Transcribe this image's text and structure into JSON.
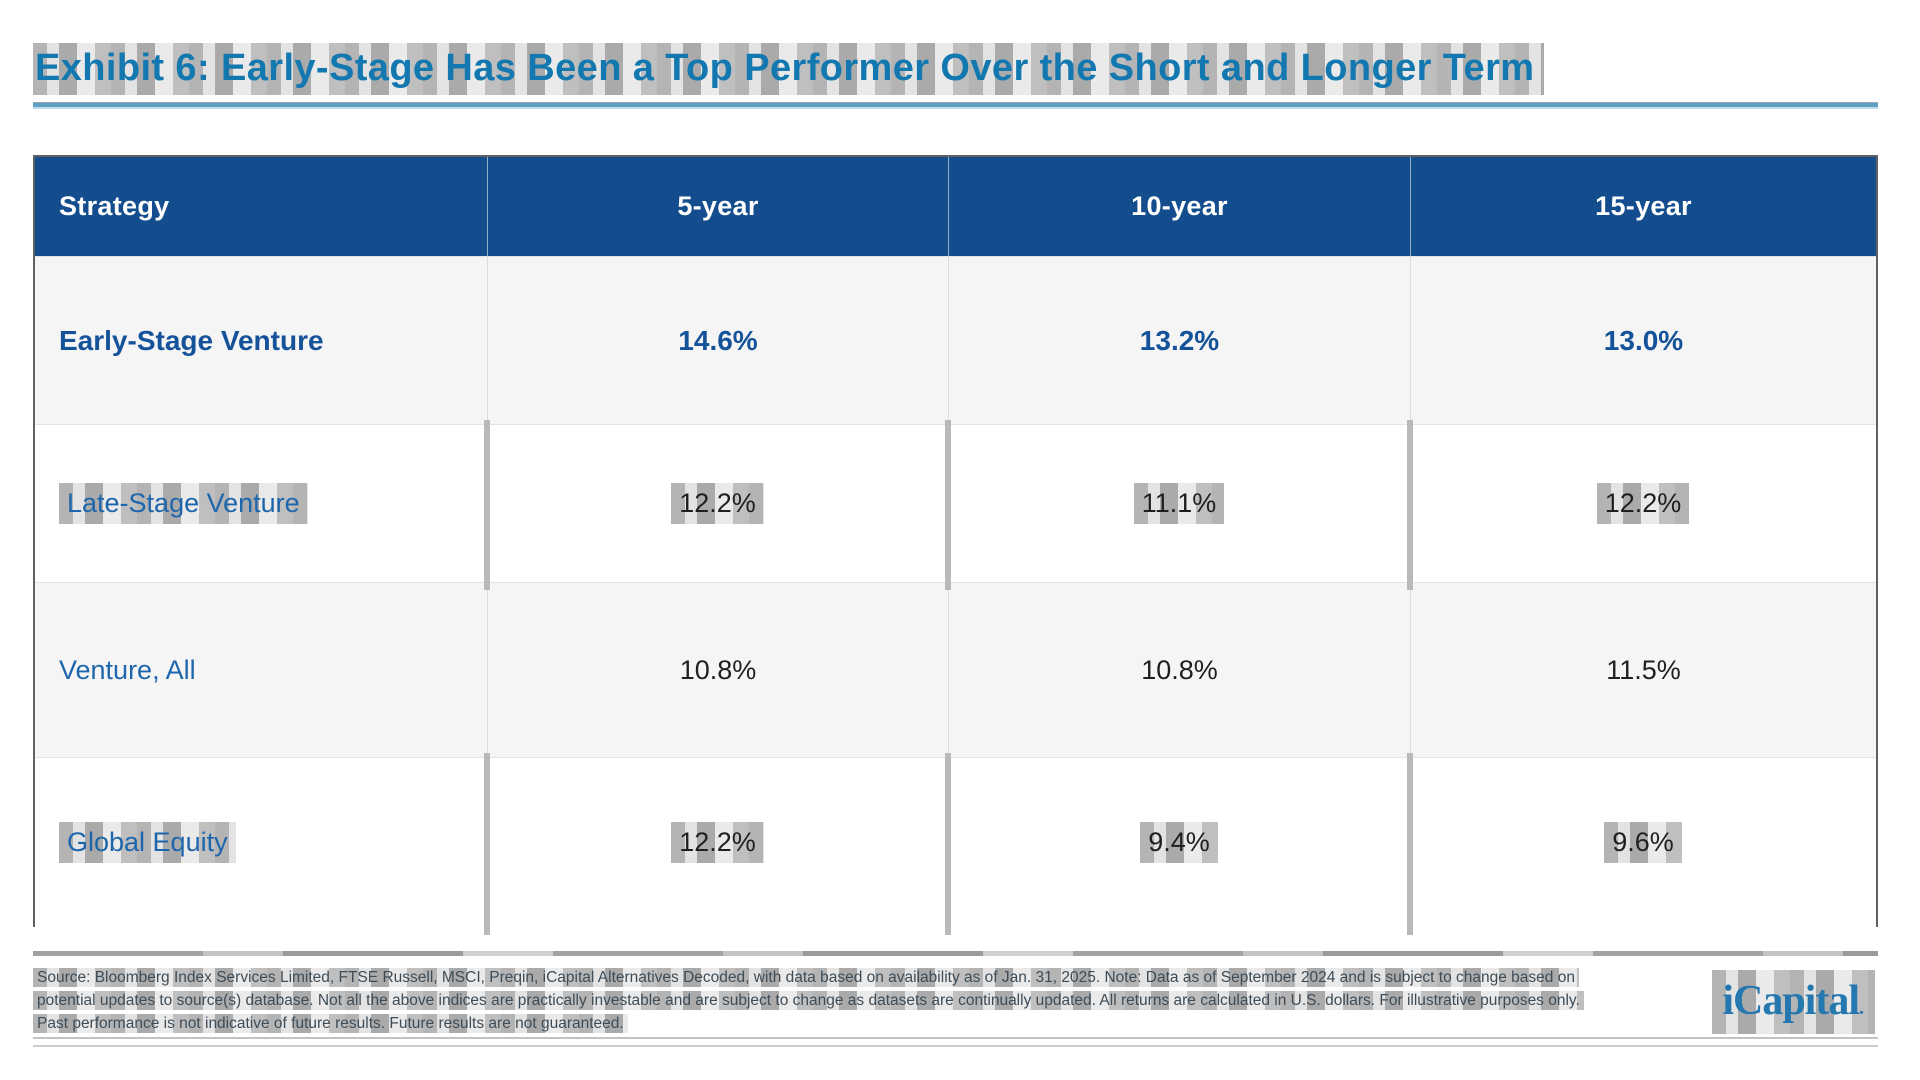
{
  "title": "Exhibit 6: Early-Stage Has Been a Top Performer Over the Short and Longer Term",
  "table": {
    "columns": [
      "Strategy",
      "5-year",
      "10-year",
      "15-year"
    ],
    "rows": [
      {
        "strategy": "Early-Stage Venture",
        "values": [
          "14.6%",
          "13.2%",
          "13.0%"
        ],
        "emphasis": "bold-navy"
      },
      {
        "strategy": "Late-Stage Venture",
        "values": [
          "12.2%",
          "11.1%",
          "12.2%"
        ],
        "emphasis": "none"
      },
      {
        "strategy": "Venture, All",
        "values": [
          "10.8%",
          "10.8%",
          "11.5%"
        ],
        "emphasis": "none"
      },
      {
        "strategy": "Global Equity",
        "values": [
          "12.2%",
          "9.4%",
          "9.6%"
        ],
        "emphasis": "none"
      }
    ]
  },
  "footer": {
    "disclaimer_lines": [
      "Source: Bloomberg Index Services Limited, FTSE Russell, MSCI, Preqin, iCapital Alternatives Decoded, with data based on availability as of Jan. 31, 2025. Note: Data as of September 2024 and is subject to change based on",
      "potential updates to source(s) database. Not all the above indices are practically investable and are subject to change as datasets are continually updated. All returns are calculated in U.S. dollars. For illustrative purposes only.",
      "Past performance is not indicative of future results. Future results are not guaranteed."
    ],
    "logo": {
      "text": "iCapital",
      "mark": "."
    }
  },
  "colors": {
    "title_blue": "#1478b0",
    "header_bg": "#134d8d",
    "header_text": "#ffffff",
    "row_highlight_navy": "#14529a",
    "strategy_blue": "#1e66ab",
    "value_dark": "#1f1f1f",
    "row_alt_bg": "#f5f5f5",
    "divider_gray": "#b9b9b9",
    "footer_text": "#3e4c57",
    "logo_blue": "#2478af",
    "rule_blue": "#5f9fc4"
  }
}
